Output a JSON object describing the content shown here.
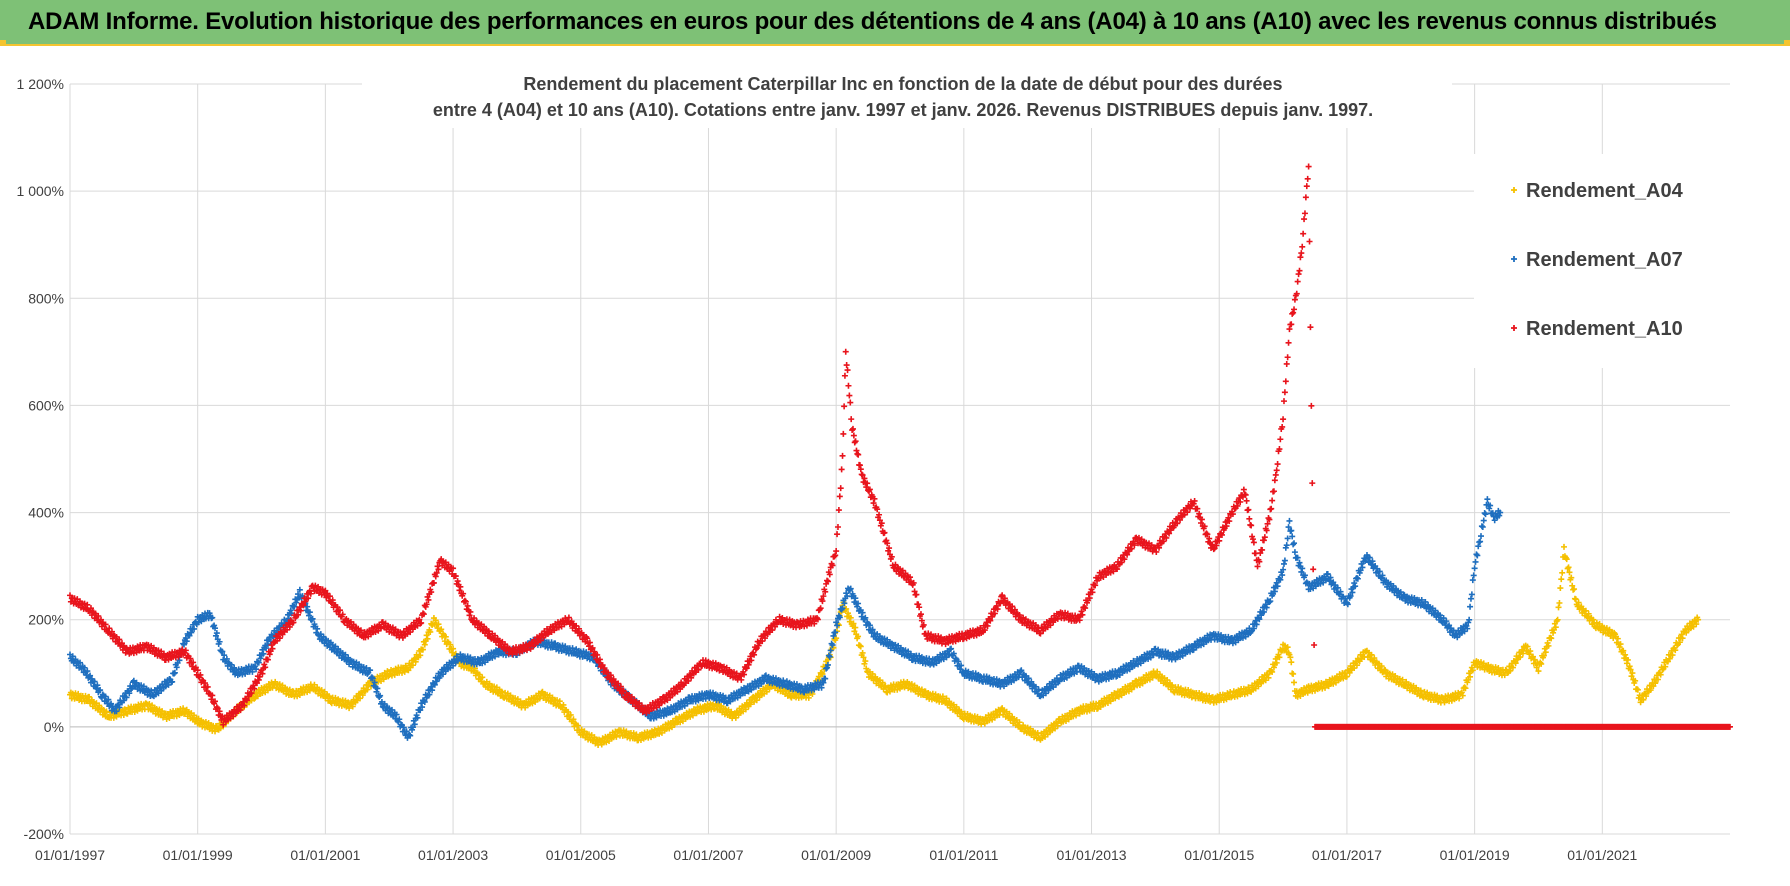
{
  "header": {
    "title": "ADAM Informe. Evolution historique des performances en euros pour des détentions de 4 ans (A04) à 10 ans (A10) avec les revenus connus distribués"
  },
  "colors": {
    "banner": "#7ec176",
    "a04": "#f5c000",
    "a07": "#1f6fbf",
    "a10": "#e8141c"
  },
  "chart_data": {
    "type": "scatter",
    "title_line1": "Rendement du placement Caterpillar Inc en fonction de la date de début pour des durées",
    "title_line2": "entre 4 (A04) et 10 ans (A10).  Cotations entre janv. 1997 et janv. 2026. Revenus DISTRIBUES  depuis janv. 1997.",
    "xlim": [
      1997.0,
      2023.0
    ],
    "ylim": [
      -200,
      1200
    ],
    "y_ticks": [
      -200,
      0,
      200,
      400,
      600,
      800,
      1000,
      1200
    ],
    "y_tick_labels": [
      "-200%",
      "0%",
      "200%",
      "400%",
      "600%",
      "800%",
      "1 000%",
      "1 200%"
    ],
    "x_ticks": [
      1997,
      1999,
      2001,
      2003,
      2005,
      2007,
      2009,
      2011,
      2013,
      2015,
      2017,
      2019,
      2021
    ],
    "x_tick_labels": [
      "01/01/1997",
      "01/01/1999",
      "01/01/2001",
      "01/01/2003",
      "01/01/2005",
      "01/01/2007",
      "01/01/2009",
      "01/01/2011",
      "01/01/2013",
      "01/01/2015",
      "01/01/2017",
      "01/01/2019",
      "01/01/2021"
    ],
    "legend_position": "top-right",
    "series": [
      {
        "name": "Rendement_A04",
        "color": "#f5c000",
        "points": [
          [
            1997.0,
            60
          ],
          [
            1997.3,
            50
          ],
          [
            1997.6,
            20
          ],
          [
            1997.9,
            30
          ],
          [
            1998.2,
            40
          ],
          [
            1998.5,
            20
          ],
          [
            1998.8,
            30
          ],
          [
            1999.0,
            10
          ],
          [
            1999.3,
            -5
          ],
          [
            1999.6,
            30
          ],
          [
            1999.9,
            60
          ],
          [
            2000.2,
            80
          ],
          [
            2000.5,
            60
          ],
          [
            2000.8,
            75
          ],
          [
            2001.1,
            50
          ],
          [
            2001.4,
            40
          ],
          [
            2001.7,
            80
          ],
          [
            2002.0,
            100
          ],
          [
            2002.3,
            110
          ],
          [
            2002.5,
            140
          ],
          [
            2002.7,
            200
          ],
          [
            2002.9,
            160
          ],
          [
            2003.1,
            120
          ],
          [
            2003.3,
            110
          ],
          [
            2003.5,
            80
          ],
          [
            2003.8,
            60
          ],
          [
            2004.1,
            40
          ],
          [
            2004.4,
            60
          ],
          [
            2004.7,
            40
          ],
          [
            2005.0,
            -10
          ],
          [
            2005.3,
            -30
          ],
          [
            2005.6,
            -10
          ],
          [
            2005.9,
            -20
          ],
          [
            2006.2,
            -10
          ],
          [
            2006.5,
            10
          ],
          [
            2006.8,
            30
          ],
          [
            2007.1,
            40
          ],
          [
            2007.4,
            20
          ],
          [
            2007.7,
            50
          ],
          [
            2008.0,
            80
          ],
          [
            2008.3,
            60
          ],
          [
            2008.6,
            60
          ],
          [
            2008.9,
            130
          ],
          [
            2009.0,
            170
          ],
          [
            2009.1,
            230
          ],
          [
            2009.3,
            180
          ],
          [
            2009.5,
            100
          ],
          [
            2009.8,
            70
          ],
          [
            2010.1,
            80
          ],
          [
            2010.4,
            60
          ],
          [
            2010.7,
            50
          ],
          [
            2011.0,
            20
          ],
          [
            2011.3,
            10
          ],
          [
            2011.6,
            30
          ],
          [
            2011.9,
            0
          ],
          [
            2012.2,
            -20
          ],
          [
            2012.5,
            10
          ],
          [
            2012.8,
            30
          ],
          [
            2013.1,
            40
          ],
          [
            2013.4,
            60
          ],
          [
            2013.7,
            80
          ],
          [
            2014.0,
            100
          ],
          [
            2014.3,
            70
          ],
          [
            2014.6,
            60
          ],
          [
            2014.9,
            50
          ],
          [
            2015.2,
            60
          ],
          [
            2015.5,
            70
          ],
          [
            2015.8,
            100
          ],
          [
            2016.0,
            150
          ],
          [
            2016.1,
            140
          ],
          [
            2016.2,
            60
          ],
          [
            2016.4,
            70
          ],
          [
            2016.7,
            80
          ],
          [
            2017.0,
            100
          ],
          [
            2017.3,
            140
          ],
          [
            2017.6,
            100
          ],
          [
            2017.9,
            80
          ],
          [
            2018.2,
            60
          ],
          [
            2018.5,
            50
          ],
          [
            2018.8,
            60
          ],
          [
            2019.0,
            120
          ],
          [
            2019.2,
            110
          ],
          [
            2019.5,
            100
          ],
          [
            2019.8,
            150
          ],
          [
            2020.0,
            110
          ],
          [
            2020.3,
            200
          ],
          [
            2020.4,
            330
          ],
          [
            2020.6,
            230
          ],
          [
            2020.9,
            190
          ],
          [
            2021.2,
            170
          ],
          [
            2021.4,
            120
          ],
          [
            2021.6,
            50
          ],
          [
            2021.8,
            80
          ],
          [
            2022.0,
            120
          ],
          [
            2022.3,
            180
          ],
          [
            2022.5,
            200
          ]
        ]
      },
      {
        "name": "Rendement_A07",
        "color": "#1f6fbf",
        "points": [
          [
            1997.0,
            130
          ],
          [
            1997.2,
            110
          ],
          [
            1997.5,
            60
          ],
          [
            1997.7,
            30
          ],
          [
            1998.0,
            80
          ],
          [
            1998.3,
            60
          ],
          [
            1998.6,
            90
          ],
          [
            1998.8,
            160
          ],
          [
            1999.0,
            200
          ],
          [
            1999.2,
            210
          ],
          [
            1999.4,
            130
          ],
          [
            1999.6,
            100
          ],
          [
            1999.9,
            110
          ],
          [
            2000.1,
            160
          ],
          [
            2000.4,
            200
          ],
          [
            2000.6,
            250
          ],
          [
            2000.9,
            170
          ],
          [
            2001.1,
            150
          ],
          [
            2001.4,
            120
          ],
          [
            2001.7,
            100
          ],
          [
            2001.9,
            40
          ],
          [
            2002.1,
            20
          ],
          [
            2002.3,
            -20
          ],
          [
            2002.5,
            40
          ],
          [
            2002.8,
            100
          ],
          [
            2003.1,
            130
          ],
          [
            2003.4,
            120
          ],
          [
            2003.7,
            140
          ],
          [
            2004.0,
            140
          ],
          [
            2004.3,
            160
          ],
          [
            2004.6,
            150
          ],
          [
            2004.9,
            140
          ],
          [
            2005.2,
            130
          ],
          [
            2005.5,
            80
          ],
          [
            2005.8,
            50
          ],
          [
            2006.1,
            20
          ],
          [
            2006.4,
            30
          ],
          [
            2006.7,
            50
          ],
          [
            2007.0,
            60
          ],
          [
            2007.3,
            50
          ],
          [
            2007.6,
            70
          ],
          [
            2007.9,
            90
          ],
          [
            2008.2,
            80
          ],
          [
            2008.5,
            70
          ],
          [
            2008.8,
            80
          ],
          [
            2009.0,
            190
          ],
          [
            2009.2,
            260
          ],
          [
            2009.4,
            210
          ],
          [
            2009.6,
            170
          ],
          [
            2009.9,
            150
          ],
          [
            2010.2,
            130
          ],
          [
            2010.5,
            120
          ],
          [
            2010.8,
            140
          ],
          [
            2011.0,
            100
          ],
          [
            2011.3,
            90
          ],
          [
            2011.6,
            80
          ],
          [
            2011.9,
            100
          ],
          [
            2012.2,
            60
          ],
          [
            2012.5,
            90
          ],
          [
            2012.8,
            110
          ],
          [
            2013.1,
            90
          ],
          [
            2013.4,
            100
          ],
          [
            2013.7,
            120
          ],
          [
            2014.0,
            140
          ],
          [
            2014.3,
            130
          ],
          [
            2014.6,
            150
          ],
          [
            2014.9,
            170
          ],
          [
            2015.2,
            160
          ],
          [
            2015.5,
            180
          ],
          [
            2015.8,
            240
          ],
          [
            2016.0,
            290
          ],
          [
            2016.1,
            380
          ],
          [
            2016.2,
            320
          ],
          [
            2016.4,
            260
          ],
          [
            2016.7,
            280
          ],
          [
            2017.0,
            230
          ],
          [
            2017.3,
            320
          ],
          [
            2017.6,
            270
          ],
          [
            2017.9,
            240
          ],
          [
            2018.2,
            230
          ],
          [
            2018.5,
            200
          ],
          [
            2018.7,
            170
          ],
          [
            2018.9,
            190
          ],
          [
            2019.0,
            300
          ],
          [
            2019.1,
            360
          ],
          [
            2019.2,
            420
          ],
          [
            2019.3,
            390
          ],
          [
            2019.4,
            400
          ]
        ]
      },
      {
        "name": "Rendement_A10",
        "color": "#e8141c",
        "points": [
          [
            1997.0,
            240
          ],
          [
            1997.3,
            220
          ],
          [
            1997.6,
            180
          ],
          [
            1997.9,
            140
          ],
          [
            1998.2,
            150
          ],
          [
            1998.5,
            130
          ],
          [
            1998.8,
            140
          ],
          [
            1999.0,
            100
          ],
          [
            1999.2,
            60
          ],
          [
            1999.4,
            10
          ],
          [
            1999.7,
            40
          ],
          [
            2000.0,
            100
          ],
          [
            2000.2,
            160
          ],
          [
            2000.5,
            200
          ],
          [
            2000.8,
            260
          ],
          [
            2001.0,
            250
          ],
          [
            2001.3,
            200
          ],
          [
            2001.6,
            170
          ],
          [
            2001.9,
            190
          ],
          [
            2002.2,
            170
          ],
          [
            2002.5,
            200
          ],
          [
            2002.8,
            310
          ],
          [
            2003.0,
            290
          ],
          [
            2003.3,
            200
          ],
          [
            2003.6,
            170
          ],
          [
            2003.9,
            140
          ],
          [
            2004.2,
            150
          ],
          [
            2004.5,
            180
          ],
          [
            2004.8,
            200
          ],
          [
            2005.1,
            160
          ],
          [
            2005.4,
            100
          ],
          [
            2005.7,
            60
          ],
          [
            2006.0,
            30
          ],
          [
            2006.3,
            50
          ],
          [
            2006.6,
            80
          ],
          [
            2006.9,
            120
          ],
          [
            2007.2,
            110
          ],
          [
            2007.5,
            90
          ],
          [
            2007.8,
            160
          ],
          [
            2008.1,
            200
          ],
          [
            2008.4,
            190
          ],
          [
            2008.7,
            200
          ],
          [
            2008.9,
            290
          ],
          [
            2009.0,
            330
          ],
          [
            2009.1,
            500
          ],
          [
            2009.15,
            700
          ],
          [
            2009.25,
            560
          ],
          [
            2009.4,
            470
          ],
          [
            2009.6,
            420
          ],
          [
            2009.9,
            300
          ],
          [
            2010.2,
            270
          ],
          [
            2010.4,
            170
          ],
          [
            2010.7,
            160
          ],
          [
            2011.0,
            170
          ],
          [
            2011.3,
            180
          ],
          [
            2011.6,
            240
          ],
          [
            2011.9,
            200
          ],
          [
            2012.2,
            180
          ],
          [
            2012.5,
            210
          ],
          [
            2012.8,
            200
          ],
          [
            2013.1,
            280
          ],
          [
            2013.4,
            300
          ],
          [
            2013.7,
            350
          ],
          [
            2014.0,
            330
          ],
          [
            2014.3,
            380
          ],
          [
            2014.6,
            420
          ],
          [
            2014.9,
            330
          ],
          [
            2015.2,
            400
          ],
          [
            2015.4,
            440
          ],
          [
            2015.6,
            300
          ],
          [
            2015.8,
            400
          ],
          [
            2015.9,
            480
          ],
          [
            2016.0,
            580
          ],
          [
            2016.1,
            740
          ],
          [
            2016.2,
            800
          ],
          [
            2016.3,
            900
          ],
          [
            2016.4,
            1050
          ],
          [
            2016.5,
            0
          ],
          [
            2017.0,
            0
          ],
          [
            2017.5,
            0
          ],
          [
            2018.0,
            0
          ],
          [
            2018.5,
            0
          ],
          [
            2019.0,
            0
          ],
          [
            2019.5,
            0
          ],
          [
            2020.0,
            0
          ],
          [
            2020.5,
            0
          ],
          [
            2021.0,
            0
          ],
          [
            2021.5,
            0
          ],
          [
            2022.0,
            0
          ],
          [
            2022.5,
            0
          ],
          [
            2023.0,
            0
          ]
        ]
      }
    ]
  }
}
